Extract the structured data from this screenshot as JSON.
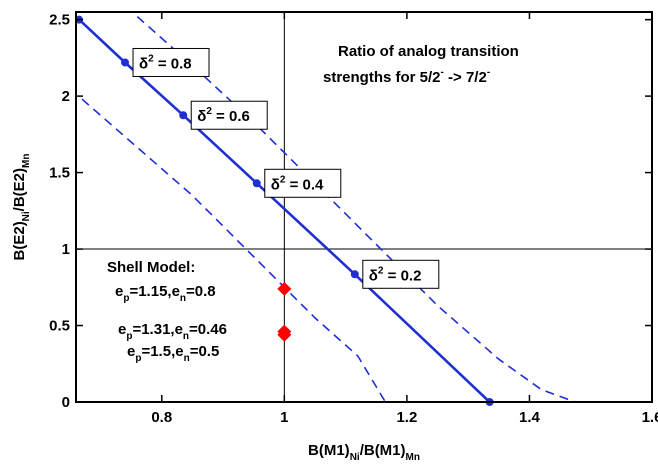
{
  "chart_data": {
    "type": "line",
    "xlabel": {
      "main": "B(M1)",
      "sub1": "Ni",
      "mid": "/B(M1)",
      "sub2": "Mn"
    },
    "ylabel": {
      "main": "B(E2)",
      "sub1": "Ni",
      "mid": "/B(E2)",
      "sub2": "Mn"
    },
    "xlim": [
      0.66,
      1.6
    ],
    "ylim": [
      0,
      2.55
    ],
    "x_ticks": [
      {
        "value": 0.8,
        "label": "0.8"
      },
      {
        "value": 1.0,
        "label": "1"
      },
      {
        "value": 1.2,
        "label": "1.2"
      },
      {
        "value": 1.4,
        "label": "1.4"
      },
      {
        "value": 1.6,
        "label": "1.6"
      }
    ],
    "y_ticks": [
      {
        "value": 0,
        "label": "0"
      },
      {
        "value": 0.5,
        "label": "0.5"
      },
      {
        "value": 1.0,
        "label": "1"
      },
      {
        "value": 1.5,
        "label": "1.5"
      },
      {
        "value": 2.0,
        "label": "2"
      },
      {
        "value": 2.5,
        "label": "2.5"
      }
    ],
    "reference_lines": {
      "x": 1.0,
      "y": 1.0
    },
    "series": [
      {
        "style": "solid",
        "color": "#1f2fd1",
        "points": [
          [
            0.665,
            2.5
          ],
          [
            0.74,
            2.22
          ],
          [
            0.835,
            1.875
          ],
          [
            0.955,
            1.43
          ],
          [
            1.115,
            0.835
          ],
          [
            1.335,
            0.0
          ]
        ]
      },
      {
        "style": "dashed",
        "color": "#1f2fd1",
        "points": [
          [
            0.76,
            2.52
          ],
          [
            0.85,
            2.2
          ],
          [
            0.95,
            1.83
          ],
          [
            1.05,
            1.43
          ],
          [
            1.15,
            1.03
          ],
          [
            1.25,
            0.63
          ],
          [
            1.35,
            0.28
          ],
          [
            1.42,
            0.08
          ],
          [
            1.475,
            0.0
          ]
        ]
      },
      {
        "style": "dashed",
        "color": "#1f2fd1",
        "points": [
          [
            0.67,
            1.98
          ],
          [
            0.75,
            1.7
          ],
          [
            0.85,
            1.35
          ],
          [
            0.95,
            0.95
          ],
          [
            1.05,
            0.55
          ],
          [
            1.12,
            0.3
          ],
          [
            1.165,
            0.0
          ]
        ]
      }
    ],
    "markers": [
      {
        "x": 0.665,
        "y": 2.5
      },
      {
        "x": 0.74,
        "y": 2.22
      },
      {
        "x": 0.835,
        "y": 1.875
      },
      {
        "x": 0.955,
        "y": 1.43
      },
      {
        "x": 1.115,
        "y": 0.835
      },
      {
        "x": 1.335,
        "y": 0.0
      }
    ],
    "delta_labels": [
      {
        "x": 0.74,
        "y": 2.22,
        "sup": "2",
        "text": " = 0.8"
      },
      {
        "x": 0.835,
        "y": 1.875,
        "sup": "2",
        "text": " = 0.6"
      },
      {
        "x": 0.955,
        "y": 1.43,
        "sup": "2",
        "text": " = 0.4"
      },
      {
        "x": 1.115,
        "y": 0.835,
        "sup": "2",
        "text": " = 0.2"
      }
    ],
    "shell_model_points": [
      {
        "x": 1.0,
        "y": 0.74,
        "color": "#ff0000"
      },
      {
        "x": 1.0,
        "y": 0.44,
        "color": "#ff0000"
      },
      {
        "x": 1.0,
        "y": 0.46,
        "color": "#ff0000"
      }
    ],
    "annotations": {
      "title_line1": "Ratio of analog transition",
      "title_line2_a": "strengths for 5/2",
      "title_line2_sup1": "-",
      "title_line2_b": " -> 7/2",
      "title_line2_sup2": "-",
      "shell_model_heading": "Shell Model:",
      "shell_model_entries": [
        {
          "ep": "1.15",
          "en": "0.8"
        },
        {
          "ep": "1.31",
          "en": "0.46"
        },
        {
          "ep": "1.5",
          "en": "0.5"
        }
      ],
      "greek_symbol": "δ",
      "e_symbol": "e",
      "p_sub": "p",
      "n_sub": "n"
    }
  }
}
